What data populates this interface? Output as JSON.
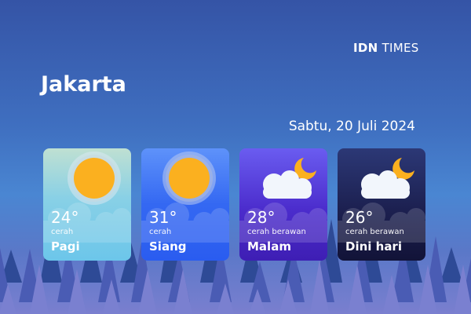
{
  "brand": {
    "logo_bold": "IDN",
    "logo_light": "TIMES"
  },
  "city": "Jakarta",
  "date": "Sabtu, 20 Juli 2024",
  "forecast": [
    {
      "period": "Pagi",
      "temp": "24°",
      "condition": "cerah",
      "icon": "sun-icon"
    },
    {
      "period": "Siang",
      "temp": "31°",
      "condition": "cerah",
      "icon": "sun-icon"
    },
    {
      "period": "Malam",
      "temp": "28°",
      "condition": "cerah berawan",
      "icon": "moon-cloud-icon"
    },
    {
      "period": "Dini hari",
      "temp": "26°",
      "condition": "cerah berawan",
      "icon": "moon-cloud-icon"
    }
  ],
  "colors": {
    "sun": "#fbb01f",
    "card_pagi": "#7fcbe8",
    "card_siang": "#3468f2",
    "card_malam": "#4b2ccc",
    "card_dini_hari": "#1c2050"
  }
}
